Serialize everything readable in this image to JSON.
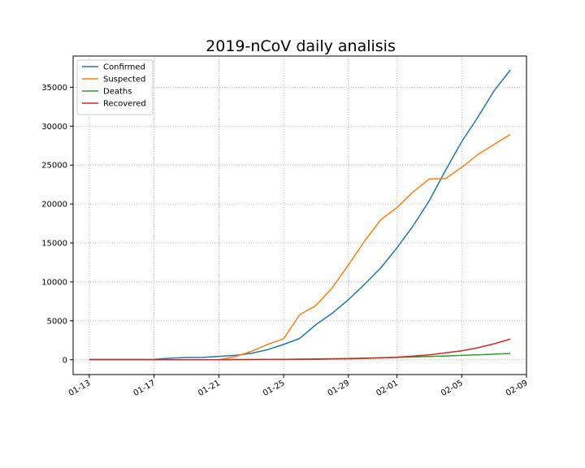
{
  "chart_data": {
    "type": "line",
    "title": "2019-nCoV daily analisis",
    "xlabel": "",
    "ylabel": "",
    "x_axis": "date",
    "xticks": [
      "2020-01-13",
      "2020-01-17",
      "2020-01-21",
      "2020-01-25",
      "2020-01-29",
      "2020-02-01",
      "2020-02-05",
      "2020-02-09"
    ],
    "xtick_labels": [
      "01-13",
      "01-17",
      "01-21",
      "01-25",
      "01-29",
      "02-01",
      "02-05",
      "02-09"
    ],
    "yticks": [
      0,
      5000,
      10000,
      15000,
      20000,
      25000,
      30000,
      35000
    ],
    "ytick_labels": [
      "0",
      "5000",
      "10000",
      "15000",
      "20000",
      "25000",
      "30000",
      "35000"
    ],
    "ylim": [
      -1900,
      39000
    ],
    "xlim": [
      "2020-01-12",
      "2020-02-09"
    ],
    "grid": true,
    "grid_style": "dotted",
    "legend_position": "top-left",
    "dates": [
      "2020-01-13",
      "2020-01-14",
      "2020-01-15",
      "2020-01-16",
      "2020-01-17",
      "2020-01-18",
      "2020-01-19",
      "2020-01-20",
      "2020-01-21",
      "2020-01-22",
      "2020-01-23",
      "2020-01-24",
      "2020-01-25",
      "2020-01-26",
      "2020-01-27",
      "2020-01-28",
      "2020-01-29",
      "2020-01-30",
      "2020-01-31",
      "2020-02-01",
      "2020-02-02",
      "2020-02-03",
      "2020-02-04",
      "2020-02-05",
      "2020-02-06",
      "2020-02-07",
      "2020-02-08"
    ],
    "series": [
      {
        "name": "Confirmed",
        "color": "#1f77b4",
        "values": [
          41,
          41,
          41,
          45,
          62,
          198,
          291,
          300,
          440,
          571,
          830,
          1287,
          1975,
          2744,
          4515,
          5974,
          7711,
          9692,
          11791,
          14380,
          17205,
          20438,
          24324,
          28018,
          31161,
          34546,
          37198
        ]
      },
      {
        "name": "Suspected",
        "color": "#ff7f0e",
        "values": [
          0,
          0,
          0,
          0,
          0,
          0,
          0,
          0,
          0,
          393,
          1072,
          1965,
          2684,
          5794,
          6973,
          9239,
          12167,
          15238,
          17988,
          19544,
          21558,
          23214,
          23260,
          24702,
          26359,
          27657,
          28942
        ]
      },
      {
        "name": "Deaths",
        "color": "#2ca02c",
        "values": [
          1,
          1,
          2,
          2,
          2,
          3,
          3,
          6,
          9,
          17,
          25,
          41,
          56,
          80,
          106,
          132,
          170,
          213,
          259,
          304,
          361,
          425,
          490,
          563,
          636,
          722,
          811
        ]
      },
      {
        "name": "Recovered",
        "color": "#d62728",
        "values": [
          0,
          0,
          0,
          0,
          0,
          0,
          0,
          0,
          0,
          28,
          34,
          38,
          49,
          51,
          60,
          103,
          124,
          171,
          243,
          328,
          475,
          632,
          892,
          1153,
          1540,
          2050,
          2649
        ]
      }
    ]
  }
}
